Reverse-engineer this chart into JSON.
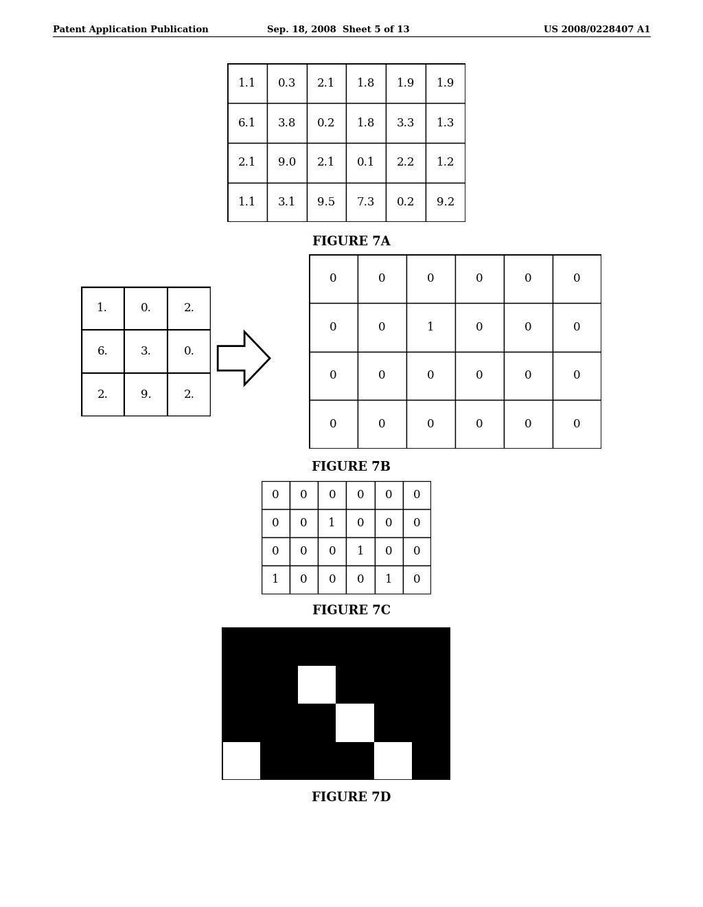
{
  "header_left": "Patent Application Publication",
  "header_mid": "Sep. 18, 2008  Sheet 5 of 13",
  "header_right": "US 2008/0228407 A1",
  "fig7a_data": [
    [
      "1.1",
      "0.3",
      "2.1",
      "1.8",
      "1.9",
      "1.9"
    ],
    [
      "6.1",
      "3.8",
      "0.2",
      "1.8",
      "3.3",
      "1.3"
    ],
    [
      "2.1",
      "9.0",
      "2.1",
      "0.1",
      "2.2",
      "1.2"
    ],
    [
      "1.1",
      "3.1",
      "9.5",
      "7.3",
      "0.2",
      "9.2"
    ]
  ],
  "fig7a_label": "FIGURE 7A",
  "fig7b_left_data": [
    [
      "1.",
      "0.",
      "2."
    ],
    [
      "6.",
      "3.",
      "0."
    ],
    [
      "2.",
      "9.",
      "2."
    ]
  ],
  "fig7b_right_data": [
    [
      0,
      0,
      0,
      0,
      0,
      0
    ],
    [
      0,
      0,
      1,
      0,
      0,
      0
    ],
    [
      0,
      0,
      0,
      0,
      0,
      0
    ],
    [
      0,
      0,
      0,
      0,
      0,
      0
    ]
  ],
  "fig7b_label": "FIGURE 7B",
  "fig7c_data": [
    [
      0,
      0,
      0,
      0,
      0,
      0
    ],
    [
      0,
      0,
      1,
      0,
      0,
      0
    ],
    [
      0,
      0,
      0,
      1,
      0,
      0
    ],
    [
      1,
      0,
      0,
      0,
      1,
      0
    ]
  ],
  "fig7c_label": "FIGURE 7C",
  "fig7d_data": [
    [
      0,
      0,
      0,
      0,
      0,
      0
    ],
    [
      0,
      0,
      1,
      0,
      0,
      0
    ],
    [
      0,
      0,
      0,
      1,
      0,
      0
    ],
    [
      1,
      0,
      0,
      0,
      1,
      0
    ]
  ],
  "fig7d_label": "FIGURE 7D",
  "bg_color": "#ffffff",
  "grid_color": "#000000",
  "text_color": "#000000",
  "header_fontsize": 9.5,
  "table_fontsize": 12,
  "caption_fontsize": 13
}
